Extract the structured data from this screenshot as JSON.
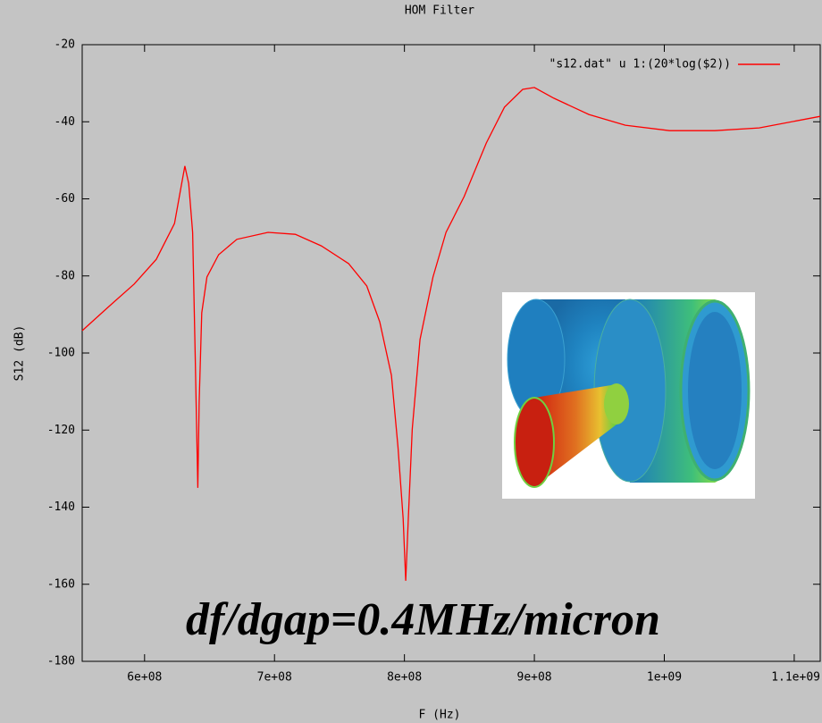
{
  "chart_data": {
    "type": "line",
    "title": "HOM Filter",
    "x_label": "F (Hz)",
    "y_label": "S12 (dB)",
    "annotation": "df/dgap=0.4MHz/micron",
    "x": [
      552000000,
      571000000,
      592000000,
      609000000,
      623000000,
      628000000,
      631000000,
      634000000,
      637000000,
      639000000,
      641000000,
      642000000,
      644000000,
      648000000,
      657000000,
      671000000,
      695000000,
      716000000,
      736000000,
      757000000,
      771000000,
      781000000,
      790000000,
      795000000,
      799000000,
      801000000,
      803000000,
      806000000,
      812000000,
      822000000,
      832000000,
      846000000,
      863000000,
      877000000,
      891000000,
      900000000,
      915000000,
      942000000,
      970000000,
      1004000000,
      1039000000,
      1073000000,
      1120000000
    ],
    "series": [
      {
        "name": "\"s12.dat\" u 1:(20*log($2))",
        "color": "#ff0000",
        "values": [
          -94.2,
          -88.4,
          -82.1,
          -75.7,
          -66.4,
          -57.1,
          -51.5,
          -56,
          -68.7,
          -101,
          -135,
          -112.8,
          -89.6,
          -80.3,
          -74.5,
          -70.5,
          -68.7,
          -69.2,
          -72.2,
          -76.8,
          -82.6,
          -91.9,
          -105.8,
          -124.3,
          -142.9,
          -159.1,
          -142.9,
          -119.7,
          -96.5,
          -80.3,
          -68.7,
          -59.4,
          -45.5,
          -36.2,
          -31.6,
          -31.1,
          -33.9,
          -38.1,
          -40.9,
          -42.3,
          -42.3,
          -41.6,
          -38.6
        ]
      }
    ],
    "xlim": [
      552000000,
      1120000000
    ],
    "xticks": [
      {
        "value": 600000000,
        "label": "6e+08"
      },
      {
        "value": 700000000,
        "label": "7e+08"
      },
      {
        "value": 800000000,
        "label": "8e+08"
      },
      {
        "value": 900000000,
        "label": "9e+08"
      },
      {
        "value": 1000000000,
        "label": "1e+09"
      },
      {
        "value": 1100000000,
        "label": "1.1e+09"
      }
    ],
    "ylim": [
      -180,
      -20
    ],
    "yticks": [
      -180,
      -160,
      -140,
      -120,
      -100,
      -80,
      -60,
      -40,
      -20
    ],
    "grid": false,
    "legend": "top-right"
  }
}
